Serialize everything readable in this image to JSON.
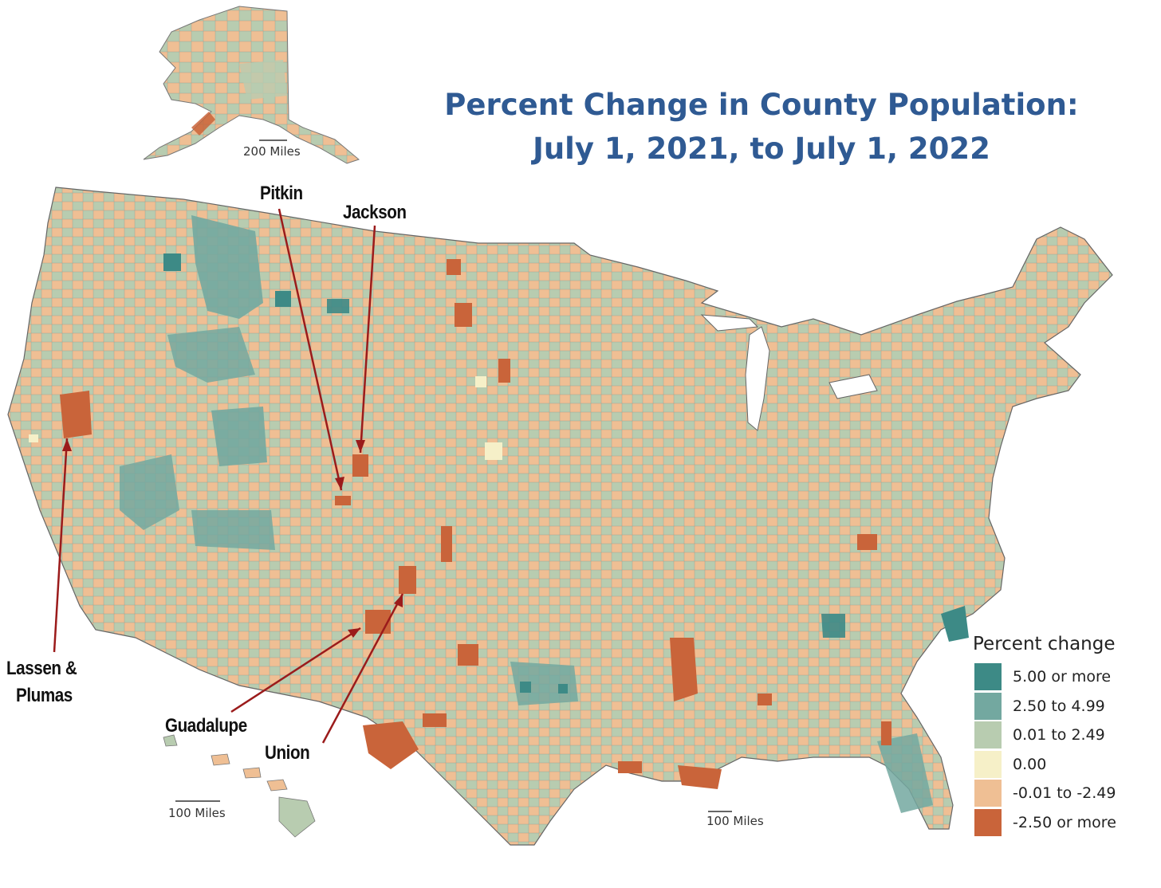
{
  "title": {
    "line1": "Percent Change in County Population:",
    "line2": "July 1, 2021, to July 1, 2022"
  },
  "callouts": {
    "pitkin": "Pitkin",
    "jackson": "Jackson",
    "lassen_plumas_line1": "Lassen &",
    "lassen_plumas_line2": "Plumas",
    "guadalupe": "Guadalupe",
    "union": "Union"
  },
  "scales": {
    "alaska": "200 Miles",
    "hawaii": "100 Miles",
    "contiguous": "100 Miles"
  },
  "legend": {
    "title": "Percent change",
    "items": [
      {
        "label": "5.00 or more",
        "color": "#3d8a86"
      },
      {
        "label": "2.50 to 4.99",
        "color": "#73a8a0"
      },
      {
        "label": "0.01 to 2.49",
        "color": "#b8ccb0"
      },
      {
        "label": "0.00",
        "color": "#f6f0c8"
      },
      {
        "label": "-0.01 to -2.49",
        "color": "#efbf94"
      },
      {
        "label": "-2.50 or more",
        "color": "#c9643a"
      }
    ]
  }
}
